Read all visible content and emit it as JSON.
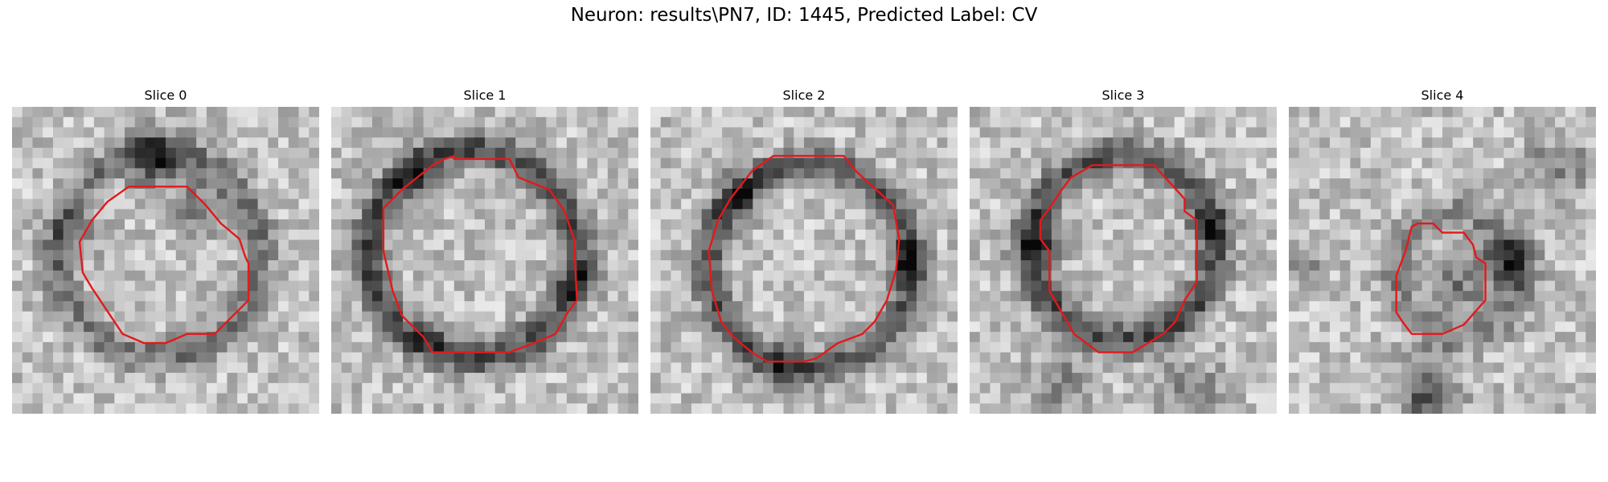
{
  "figure": {
    "title": "Neuron: results\\PN7, ID: 1445, Predicted Label: CV",
    "contour_color": "#e3191c"
  },
  "panels": [
    {
      "title": "Slice 0",
      "center": [
        0.48,
        0.48
      ],
      "ring": 0.33,
      "ring_strength": 0.55,
      "blobs": [
        [
          0.47,
          0.17,
          0.09,
          0.8
        ],
        [
          0.62,
          0.33,
          0.08,
          0.5
        ],
        [
          0.2,
          0.42,
          0.09,
          0.3
        ]
      ],
      "contour": [
        [
          0.38,
          0.26
        ],
        [
          0.57,
          0.26
        ],
        [
          0.63,
          0.32
        ],
        [
          0.68,
          0.38
        ],
        [
          0.74,
          0.43
        ],
        [
          0.76,
          0.49
        ],
        [
          0.77,
          0.51
        ],
        [
          0.77,
          0.63
        ],
        [
          0.73,
          0.67
        ],
        [
          0.66,
          0.74
        ],
        [
          0.57,
          0.74
        ],
        [
          0.5,
          0.77
        ],
        [
          0.43,
          0.77
        ],
        [
          0.36,
          0.74
        ],
        [
          0.26,
          0.59
        ],
        [
          0.23,
          0.54
        ],
        [
          0.22,
          0.44
        ],
        [
          0.26,
          0.37
        ],
        [
          0.31,
          0.31
        ]
      ]
    },
    {
      "title": "Slice 1",
      "center": [
        0.46,
        0.48
      ],
      "ring": 0.34,
      "ring_strength": 0.85,
      "blobs": [
        [
          0.27,
          0.22,
          0.07,
          0.5
        ],
        [
          0.82,
          0.58,
          0.06,
          0.5
        ],
        [
          0.34,
          0.74,
          0.06,
          0.4
        ]
      ],
      "contour": [
        [
          0.33,
          0.19
        ],
        [
          0.37,
          0.17
        ],
        [
          0.4,
          0.16
        ],
        [
          0.4,
          0.17
        ],
        [
          0.58,
          0.17
        ],
        [
          0.61,
          0.23
        ],
        [
          0.71,
          0.27
        ],
        [
          0.76,
          0.34
        ],
        [
          0.79,
          0.43
        ],
        [
          0.8,
          0.63
        ],
        [
          0.77,
          0.67
        ],
        [
          0.73,
          0.74
        ],
        [
          0.66,
          0.77
        ],
        [
          0.58,
          0.8
        ],
        [
          0.33,
          0.8
        ],
        [
          0.3,
          0.75
        ],
        [
          0.23,
          0.68
        ],
        [
          0.2,
          0.6
        ],
        [
          0.17,
          0.47
        ],
        [
          0.17,
          0.33
        ],
        [
          0.23,
          0.27
        ]
      ]
    },
    {
      "title": "Slice 2",
      "center": [
        0.52,
        0.52
      ],
      "ring": 0.33,
      "ring_strength": 0.8,
      "blobs": [
        [
          0.28,
          0.3,
          0.08,
          0.4
        ],
        [
          0.82,
          0.5,
          0.06,
          0.5
        ],
        [
          0.42,
          0.88,
          0.08,
          0.35
        ]
      ],
      "contour": [
        [
          0.4,
          0.16
        ],
        [
          0.63,
          0.16
        ],
        [
          0.67,
          0.21
        ],
        [
          0.79,
          0.32
        ],
        [
          0.81,
          0.43
        ],
        [
          0.8,
          0.53
        ],
        [
          0.77,
          0.63
        ],
        [
          0.73,
          0.7
        ],
        [
          0.69,
          0.74
        ],
        [
          0.61,
          0.77
        ],
        [
          0.54,
          0.82
        ],
        [
          0.5,
          0.83
        ],
        [
          0.38,
          0.83
        ],
        [
          0.33,
          0.8
        ],
        [
          0.27,
          0.75
        ],
        [
          0.23,
          0.7
        ],
        [
          0.2,
          0.6
        ],
        [
          0.19,
          0.47
        ],
        [
          0.22,
          0.37
        ],
        [
          0.26,
          0.3
        ],
        [
          0.33,
          0.21
        ]
      ]
    },
    {
      "title": "Slice 3",
      "center": [
        0.5,
        0.46
      ],
      "ring": 0.3,
      "ring_strength": 0.85,
      "blobs": [
        [
          0.22,
          0.45,
          0.08,
          0.5
        ],
        [
          0.78,
          0.4,
          0.07,
          0.45
        ],
        [
          0.3,
          0.9,
          0.1,
          0.45
        ],
        [
          0.72,
          0.92,
          0.1,
          0.45
        ]
      ],
      "contour": [
        [
          0.4,
          0.19
        ],
        [
          0.6,
          0.19
        ],
        [
          0.7,
          0.3
        ],
        [
          0.7,
          0.34
        ],
        [
          0.74,
          0.37
        ],
        [
          0.74,
          0.57
        ],
        [
          0.7,
          0.63
        ],
        [
          0.67,
          0.7
        ],
        [
          0.63,
          0.74
        ],
        [
          0.53,
          0.8
        ],
        [
          0.42,
          0.8
        ],
        [
          0.34,
          0.74
        ],
        [
          0.3,
          0.67
        ],
        [
          0.26,
          0.6
        ],
        [
          0.26,
          0.47
        ],
        [
          0.23,
          0.43
        ],
        [
          0.23,
          0.37
        ],
        [
          0.26,
          0.33
        ],
        [
          0.3,
          0.27
        ],
        [
          0.33,
          0.23
        ]
      ]
    },
    {
      "title": "Slice 4",
      "center": [
        0.55,
        0.55
      ],
      "ring": 0.2,
      "ring_strength": 0.45,
      "blobs": [
        [
          0.7,
          0.5,
          0.08,
          0.75
        ],
        [
          0.55,
          0.58,
          0.1,
          0.45
        ],
        [
          0.45,
          0.93,
          0.1,
          0.75
        ],
        [
          0.88,
          0.2,
          0.1,
          0.45
        ],
        [
          0.05,
          0.5,
          0.07,
          0.35
        ]
      ],
      "contour": [
        [
          0.4,
          0.39
        ],
        [
          0.42,
          0.38
        ],
        [
          0.47,
          0.38
        ],
        [
          0.5,
          0.41
        ],
        [
          0.57,
          0.41
        ],
        [
          0.6,
          0.45
        ],
        [
          0.61,
          0.49
        ],
        [
          0.64,
          0.51
        ],
        [
          0.64,
          0.63
        ],
        [
          0.57,
          0.71
        ],
        [
          0.5,
          0.74
        ],
        [
          0.4,
          0.74
        ],
        [
          0.37,
          0.7
        ],
        [
          0.35,
          0.67
        ],
        [
          0.35,
          0.55
        ],
        [
          0.38,
          0.47
        ]
      ]
    }
  ]
}
